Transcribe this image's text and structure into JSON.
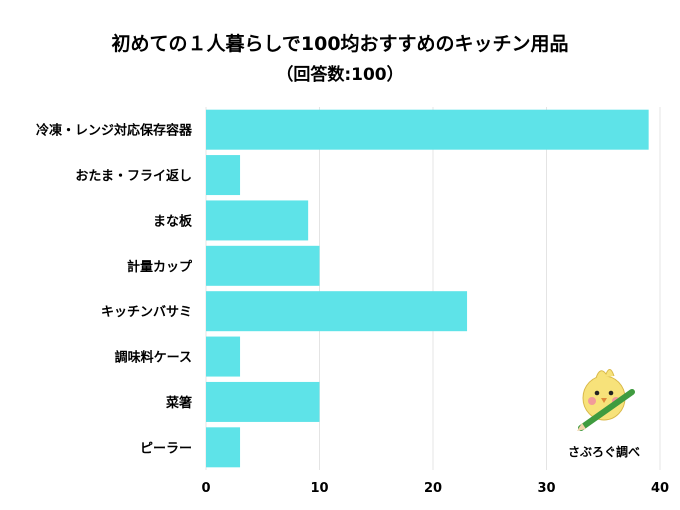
{
  "chart_data": {
    "type": "bar",
    "orientation": "horizontal",
    "title": "初めての１人暮らしで100均おすすめのキッチン用品",
    "subtitle": "（回答数:100）",
    "categories": [
      "冷凍・レンジ対応保存容器",
      "おたま・フライ返し",
      "まな板",
      "計量カップ",
      "キッチンバサミ",
      "調味料ケース",
      "菜箸",
      "ピーラー"
    ],
    "values": [
      39,
      3,
      9,
      10,
      23,
      3,
      10,
      3
    ],
    "xlim": [
      0,
      40
    ],
    "xticks": [
      0,
      10,
      20,
      30,
      40
    ],
    "grid": true,
    "bar_color": "#5ee3e8",
    "grid_color": "#e4e4e4"
  },
  "logo": {
    "text": "さぶろぐ調べ"
  },
  "colors": {
    "logo_bird": "#f7e27a",
    "logo_pencil": "#3f9b3f"
  }
}
